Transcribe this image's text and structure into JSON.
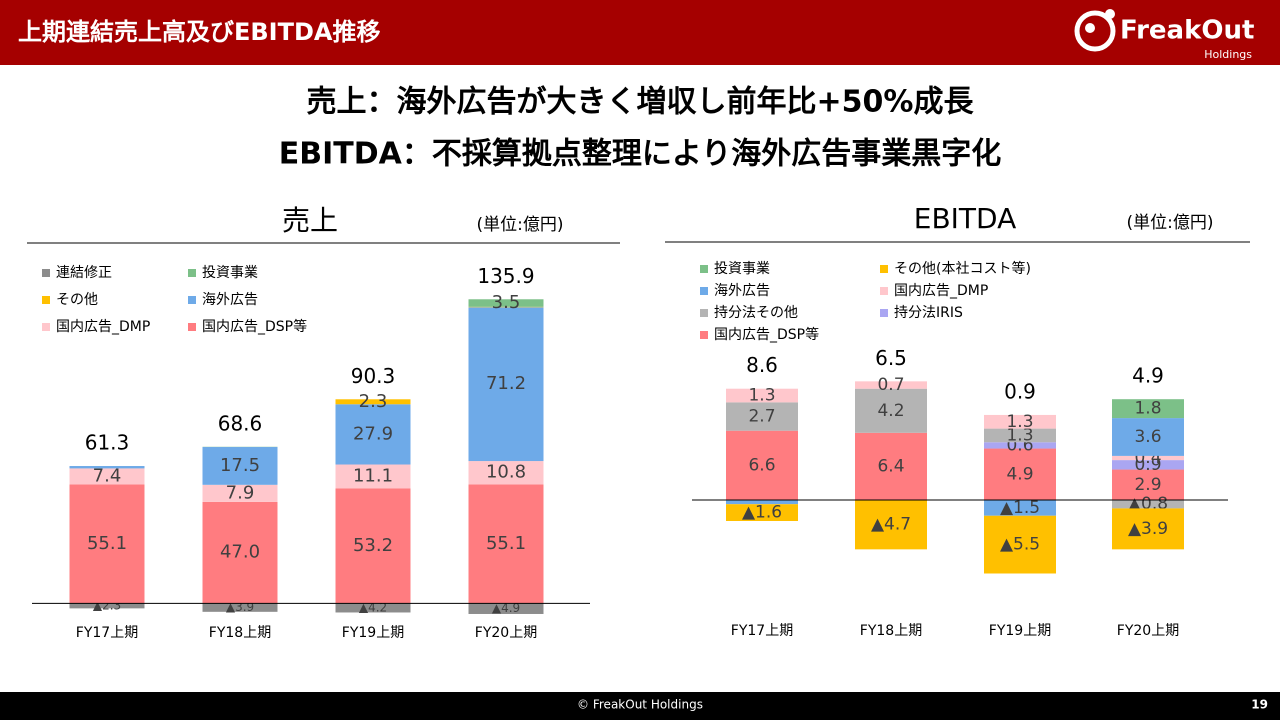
{
  "header": {
    "title": "上期連結売上高及びEBITDA推移",
    "logo": "FreakOut",
    "logo_sub": "Holdings"
  },
  "headline": [
    "売上：海外広告が大きく増収し前年比+50%成長",
    "EBITDA：不採算拠点整理により海外広告事業黒字化"
  ],
  "footer": {
    "copyright": "© FreakOut Holdings",
    "page": "19"
  },
  "chart_data": [
    {
      "type": "stacked_bar",
      "title": "売上",
      "unit_label": "(単位:億円)",
      "categories": [
        "FY17上期",
        "FY18上期",
        "FY19上期",
        "FY20上期"
      ],
      "ylim": [
        -10,
        140
      ],
      "totals": [
        61.3,
        68.6,
        90.3,
        135.9
      ],
      "series": [
        {
          "name": "連結修正",
          "color": "#8c8c8c",
          "values": [
            -2.3,
            -3.9,
            -4.2,
            -4.9
          ],
          "value_labels": [
            "▲2.3",
            "▲3.9",
            "▲4.2",
            "▲4.9"
          ]
        },
        {
          "name": "国内広告_DSP等",
          "color": "#ff7c80",
          "values": [
            55.1,
            47.0,
            53.2,
            55.1
          ],
          "value_labels": [
            "55.1",
            "47.0",
            "53.2",
            "55.1"
          ]
        },
        {
          "name": "国内広告_DMP",
          "color": "#ffc7cc",
          "values": [
            7.4,
            7.9,
            11.1,
            10.8
          ],
          "value_labels": [
            "7.4",
            "7.9",
            "11.1",
            "10.8"
          ]
        },
        {
          "name": "海外広告",
          "color": "#6eaae8",
          "values": [
            1.1,
            17.5,
            27.9,
            71.2
          ],
          "value_labels": [
            null,
            "17.5",
            "27.9",
            "71.2"
          ]
        },
        {
          "name": "その他",
          "color": "#ffc000",
          "values": [
            0,
            0,
            2.3,
            0.2
          ],
          "value_labels": [
            null,
            null,
            "2.3",
            null
          ]
        },
        {
          "name": "投資事業",
          "color": "#7cc088",
          "values": [
            0,
            0.1,
            0,
            3.5
          ],
          "value_labels": [
            null,
            null,
            null,
            "3.5"
          ]
        }
      ]
    },
    {
      "type": "stacked_bar",
      "title": "EBITDA",
      "unit_label": "(単位:億円)",
      "categories": [
        "FY17上期",
        "FY18上期",
        "FY19上期",
        "FY20上期"
      ],
      "ylim": [
        -8,
        12
      ],
      "totals": [
        8.6,
        6.5,
        0.9,
        4.9
      ],
      "series": [
        {
          "name": "国内広告_DSP等",
          "color": "#ff7c80",
          "values": [
            6.6,
            6.4,
            4.9,
            2.9
          ],
          "value_labels": [
            "6.6",
            "6.4",
            "4.9",
            "2.9"
          ]
        },
        {
          "name": "持分法IRIS",
          "color": "#aaa6f2",
          "values": [
            0,
            0,
            0.6,
            0.9
          ],
          "value_labels": [
            null,
            null,
            "0.6",
            "0.9"
          ]
        },
        {
          "name": "持分法その他",
          "color": "#b4b4b4",
          "values": [
            2.7,
            4.2,
            1.3,
            -0.8
          ],
          "value_labels": [
            "2.7",
            "4.2",
            "1.3",
            "▲0.8"
          ]
        },
        {
          "name": "国内広告_DMP",
          "color": "#ffc7cc",
          "values": [
            1.3,
            0.7,
            1.3,
            0.4
          ],
          "value_labels": [
            "1.3",
            "0.7",
            "1.3",
            "0.4"
          ]
        },
        {
          "name": "海外広告",
          "color": "#6eaae8",
          "values": [
            -0.4,
            0,
            -1.5,
            3.6
          ],
          "value_labels": [
            null,
            null,
            "▲1.5",
            "3.6"
          ]
        },
        {
          "name": "その他(本社コスト等)",
          "color": "#ffc000",
          "values": [
            -1.6,
            -4.7,
            -5.5,
            -3.9
          ],
          "value_labels": [
            "▲1.6",
            "▲4.7",
            "▲5.5",
            "▲3.9"
          ]
        },
        {
          "name": "投資事業",
          "color": "#7cc088",
          "values": [
            0,
            0,
            0,
            1.8
          ],
          "value_labels": [
            null,
            null,
            null,
            "1.8"
          ]
        }
      ]
    }
  ]
}
